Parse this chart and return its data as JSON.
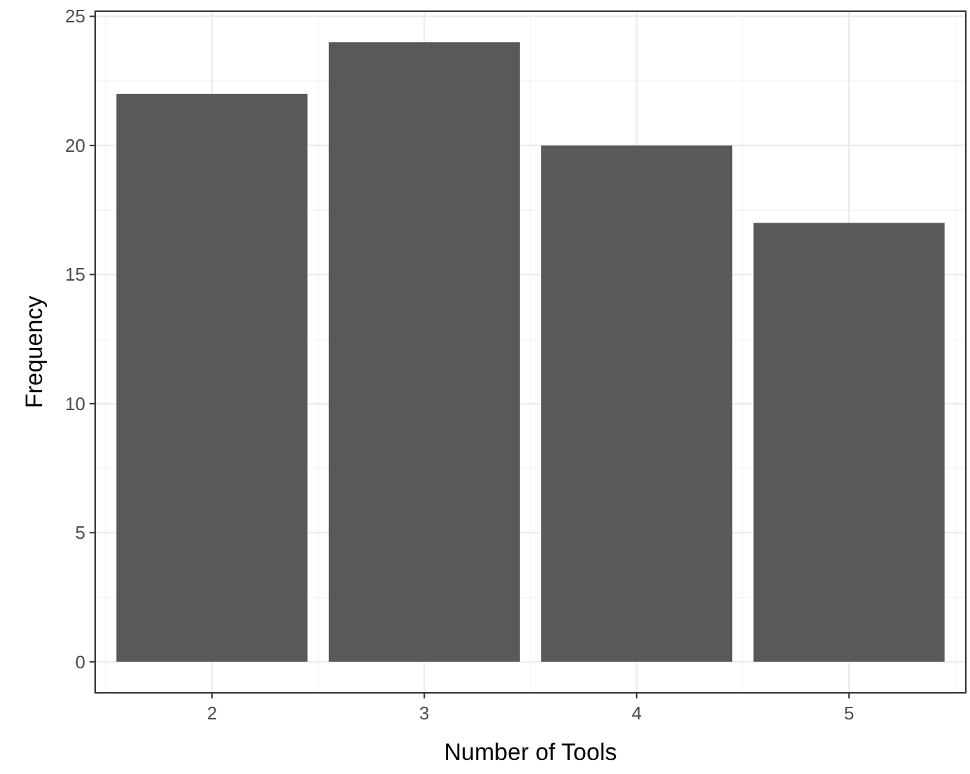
{
  "chart_data": {
    "type": "bar",
    "xlabel": "Number of Tools",
    "ylabel": "Frequency",
    "categories": [
      "2",
      "3",
      "4",
      "5"
    ],
    "values": [
      22,
      24,
      20,
      17
    ],
    "color": "#595959",
    "ylim": [
      -1.2,
      25.2
    ],
    "yticks": [
      0,
      5,
      10,
      15,
      20,
      25
    ],
    "grid": true
  }
}
